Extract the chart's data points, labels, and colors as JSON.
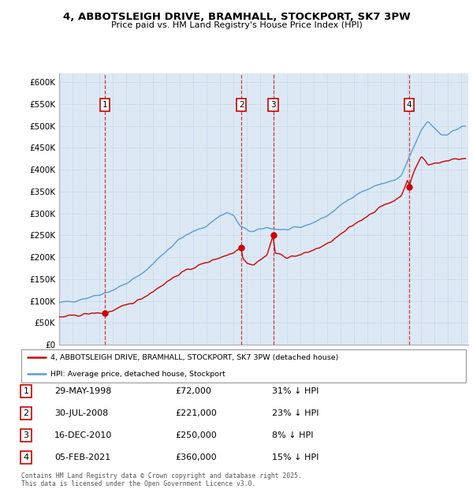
{
  "title1": "4, ABBOTSLEIGH DRIVE, BRAMHALL, STOCKPORT, SK7 3PW",
  "title2": "Price paid vs. HM Land Registry's House Price Index (HPI)",
  "background_color": "#dce9f5",
  "legend_line1": "4, ABBOTSLEIGH DRIVE, BRAMHALL, STOCKPORT, SK7 3PW (detached house)",
  "legend_line2": "HPI: Average price, detached house, Stockport",
  "transactions": [
    {
      "num": 1,
      "date": "29-MAY-1998",
      "price": 72000,
      "pct": "31%",
      "year": 1998.41
    },
    {
      "num": 2,
      "date": "30-JUL-2008",
      "price": 221000,
      "pct": "23%",
      "year": 2008.58
    },
    {
      "num": 3,
      "date": "16-DEC-2010",
      "price": 250000,
      "pct": "8%",
      "year": 2010.96
    },
    {
      "num": 4,
      "date": "05-FEB-2021",
      "price": 360000,
      "pct": "15%",
      "year": 2021.09
    }
  ],
  "footer": "Contains HM Land Registry data © Crown copyright and database right 2025.\nThis data is licensed under the Open Government Licence v3.0.",
  "ylim": [
    0,
    620000
  ],
  "yticks": [
    0,
    50000,
    100000,
    150000,
    200000,
    250000,
    300000,
    350000,
    400000,
    450000,
    500000,
    550000,
    600000
  ],
  "xlim_start": 1995.0,
  "xlim_end": 2025.5,
  "red_color": "#cc0000",
  "blue_color": "#5b9bd5",
  "trans_prices": [
    72000,
    221000,
    250000,
    360000
  ]
}
